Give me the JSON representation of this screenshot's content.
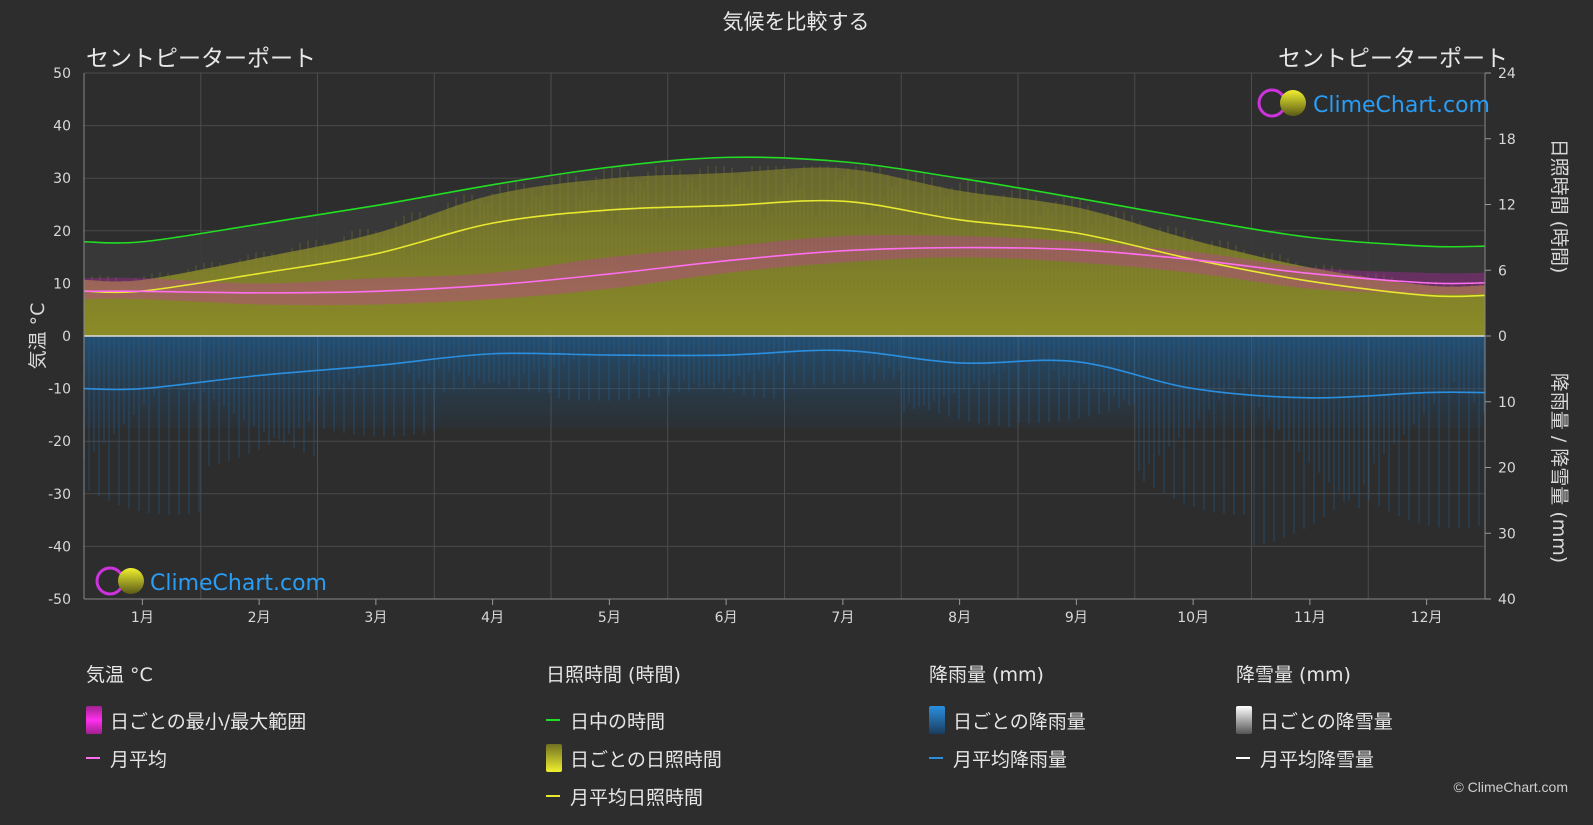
{
  "title": "気候を比較する",
  "location_left": "セントピーターポート",
  "location_right": "セントピーターポート",
  "watermark": "ClimeChart.com",
  "copyright": "© ClimeChart.com",
  "colors": {
    "background": "#2d2d2d",
    "daylight": "#22dd22",
    "sunshine_line": "#e8e830",
    "sunshine_fill": "#b8b81e",
    "temp_line": "#ff6ef0",
    "temp_range": "#dd22cc",
    "rain_line": "#2b8fe0",
    "rain_fill": "#1e6aa8",
    "snow": "#ffffff",
    "watermark_text": "#2a9df4"
  },
  "chart_data": {
    "type": "line",
    "categories": [
      "1月",
      "2月",
      "3月",
      "4月",
      "5月",
      "6月",
      "7月",
      "8月",
      "9月",
      "10月",
      "11月",
      "12月"
    ],
    "y_left": {
      "label": "気温 °C",
      "range": [
        -50,
        50
      ],
      "ticks": [
        50,
        40,
        30,
        20,
        10,
        0,
        -10,
        -20,
        -30,
        -40,
        -50
      ]
    },
    "y_right_top": {
      "label": "日照時間 (時間)",
      "range": [
        0,
        24
      ],
      "ticks": [
        24,
        18,
        12,
        6,
        0
      ]
    },
    "y_right_bottom": {
      "label": "降雨量 / 降雪量 (mm)",
      "range": [
        0,
        40
      ],
      "ticks": [
        0,
        10,
        20,
        30,
        40
      ]
    },
    "series": [
      {
        "name": "日中の時間",
        "axis": "hours",
        "values": [
          8.6,
          10.2,
          11.9,
          13.8,
          15.4,
          16.3,
          15.9,
          14.4,
          12.6,
          10.7,
          9.0,
          8.2
        ]
      },
      {
        "name": "月平均日照時間",
        "axis": "hours",
        "values": [
          4.1,
          5.7,
          7.5,
          10.3,
          11.5,
          11.9,
          12.3,
          10.6,
          9.4,
          7.0,
          5.0,
          3.7
        ]
      },
      {
        "name": "月平均",
        "axis": "temp",
        "values": [
          8.5,
          8.2,
          8.5,
          9.7,
          11.8,
          14.3,
          16.2,
          16.8,
          16.4,
          14.5,
          11.9,
          10.1
        ]
      },
      {
        "name": "月平均降雨量",
        "axis": "mm",
        "values": [
          8.0,
          6.0,
          4.5,
          2.7,
          2.9,
          2.9,
          2.2,
          4.1,
          3.9,
          8.0,
          9.4,
          8.6
        ]
      }
    ],
    "daily_temp_range": {
      "min": [
        7,
        6,
        6,
        7,
        9,
        12,
        14,
        15,
        14,
        12,
        9,
        8
      ],
      "max": [
        11,
        10,
        11,
        12,
        15,
        17,
        19,
        19,
        18,
        16,
        13,
        12
      ]
    },
    "grid": true
  },
  "legend": {
    "groups": [
      {
        "header": "気温 °C",
        "items": [
          {
            "label": "日ごとの最小/最大範囲",
            "kind": "box",
            "color": "#dd22cc"
          },
          {
            "label": "月平均",
            "kind": "line",
            "color": "#ff6ef0"
          }
        ]
      },
      {
        "header": "日照時間 (時間)",
        "items": [
          {
            "label": "日中の時間",
            "kind": "line",
            "color": "#22dd22"
          },
          {
            "label": "ごとの日照時間",
            "prefix": "日",
            "kind": "box",
            "color": "#c8c820"
          },
          {
            "label": "月平均日照時間",
            "kind": "line",
            "color": "#e8e830"
          }
        ]
      },
      {
        "header": "降雨量 (mm)",
        "items": [
          {
            "label": "日ごとの降雨量",
            "kind": "box",
            "color": "#2b8fe0"
          },
          {
            "label": "月平均降雨量",
            "kind": "line",
            "color": "#2b8fe0"
          }
        ]
      },
      {
        "header": "降雪量 (mm)",
        "items": [
          {
            "label": "日ごとの降雪量",
            "kind": "box",
            "color": "#e0e0e0"
          },
          {
            "label": "月平均降雪量",
            "kind": "line",
            "color": "#ffffff"
          }
        ]
      }
    ]
  }
}
